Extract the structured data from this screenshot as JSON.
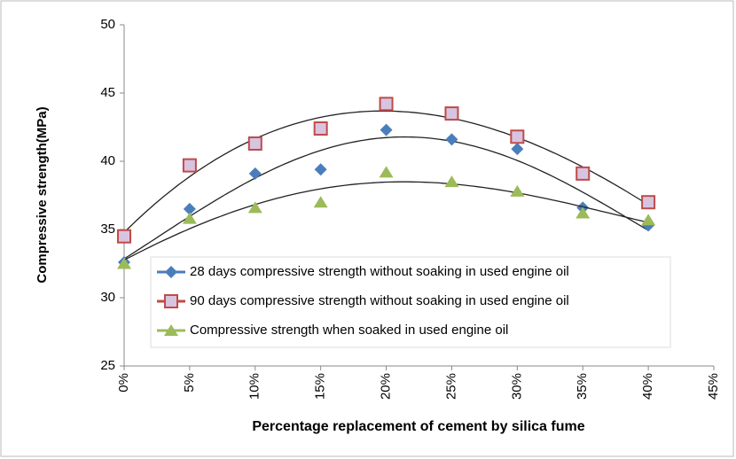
{
  "chart_data": {
    "type": "scatter",
    "x_label": "Percentage replacement of cement by silica fume",
    "y_label": "Compressive strength(MPa)",
    "x": [
      0,
      5,
      10,
      15,
      20,
      25,
      30,
      35,
      40
    ],
    "series": [
      {
        "name": "28 days compressive strength without soaking in used engine oil",
        "color": "#4a7ebb",
        "marker": "diamond",
        "values": [
          32.6,
          36.5,
          39.1,
          39.4,
          42.3,
          41.6,
          40.9,
          36.6,
          35.3
        ]
      },
      {
        "name": "90 days compressive strength without soaking in used engine oil",
        "color": "#be4b48",
        "marker": "square",
        "values": [
          34.5,
          39.7,
          41.3,
          42.4,
          44.2,
          43.5,
          41.8,
          39.1,
          37.0
        ]
      },
      {
        "name": "Compressive strength when soaked in  used engine oil",
        "color": "#9bbb59",
        "marker": "triangle",
        "values": [
          32.5,
          35.8,
          36.6,
          37.0,
          39.2,
          38.5,
          37.8,
          36.2,
          35.7
        ]
      }
    ],
    "trendline": "polynomial",
    "xlim": [
      0,
      45
    ],
    "xticks": [
      {
        "value": 0,
        "label": "0%"
      },
      {
        "value": 5,
        "label": "5%"
      },
      {
        "value": 10,
        "label": "10%"
      },
      {
        "value": 15,
        "label": "15%"
      },
      {
        "value": 20,
        "label": "20%"
      },
      {
        "value": 25,
        "label": "25%"
      },
      {
        "value": 30,
        "label": "30%"
      },
      {
        "value": 35,
        "label": "35%"
      },
      {
        "value": 40,
        "label": "40%"
      },
      {
        "value": 45,
        "label": "45%"
      }
    ],
    "ylim": [
      25,
      50
    ],
    "yticks": [
      25,
      30,
      35,
      40,
      45,
      50
    ]
  }
}
